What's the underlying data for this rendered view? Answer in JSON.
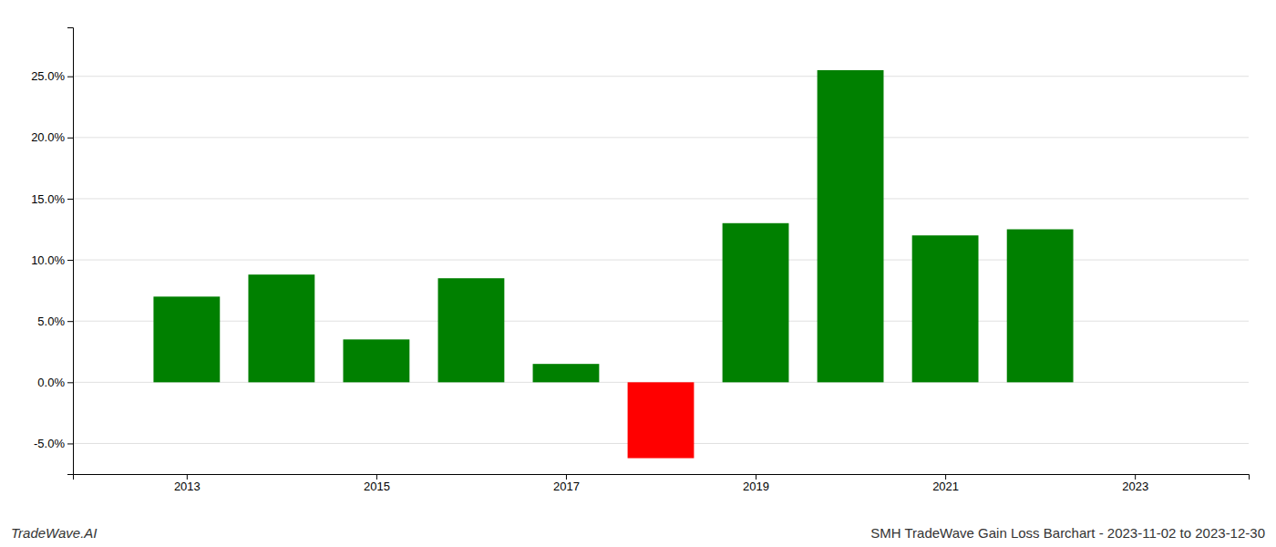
{
  "chart_data": {
    "type": "bar",
    "title": "SMH TradeWave Gain Loss Barchart - 2023-11-02 to 2023-12-30",
    "annotations": [
      {
        "text": "TradeWave.AI"
      }
    ],
    "x": [
      2013,
      2014,
      2015,
      2016,
      2017,
      2018,
      2019,
      2020,
      2021,
      2022
    ],
    "values": [
      0.07,
      0.088,
      0.035,
      0.085,
      0.015,
      -0.062,
      0.13,
      0.255,
      0.12,
      0.125
    ],
    "colors": [
      "#008000",
      "#008000",
      "#008000",
      "#008000",
      "#008000",
      "#ff0000",
      "#008000",
      "#008000",
      "#008000",
      "#008000"
    ],
    "xlim": [
      2011.8,
      2024.2
    ],
    "xticks": [
      2013,
      2015,
      2017,
      2019,
      2021,
      2023
    ],
    "ylim": [
      -0.075,
      0.29
    ],
    "yticks": [
      {
        "value": -0.05,
        "label": "-5.0%"
      },
      {
        "value": 0.0,
        "label": "0.0%"
      },
      {
        "value": 0.05,
        "label": "5.0%"
      },
      {
        "value": 0.1,
        "label": "10.0%"
      },
      {
        "value": 0.15,
        "label": "15.0%"
      },
      {
        "value": 0.2,
        "label": "20.0%"
      },
      {
        "value": 0.25,
        "label": "25.0%"
      }
    ],
    "grid": true
  }
}
